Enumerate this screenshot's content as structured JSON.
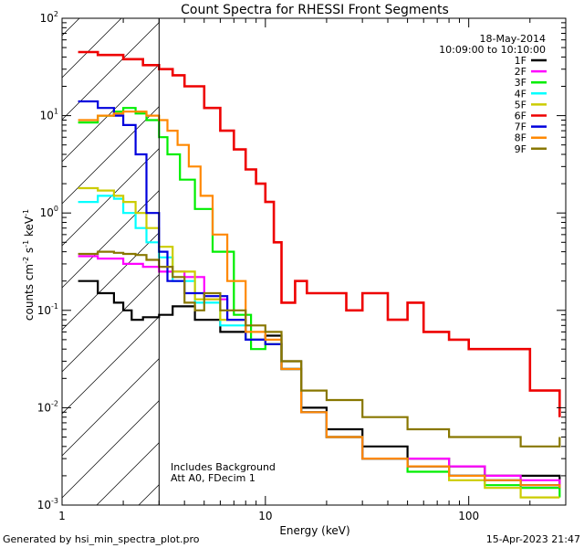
{
  "chart_data": {
    "type": "line",
    "title": "Count Spectra for RHESSI Front Segments",
    "xlabel": "Energy (keV)",
    "ylabel_parts": [
      "counts cm",
      "-2",
      " s",
      "-1",
      " keV",
      "-1"
    ],
    "xscale": "log",
    "yscale": "log",
    "xlim": [
      1,
      300
    ],
    "ylim": [
      0.001,
      100
    ],
    "x_ticks": [
      {
        "value": 1,
        "label": "1"
      },
      {
        "value": 10,
        "label": "10"
      },
      {
        "value": 100,
        "label": "100"
      }
    ],
    "y_ticks": [
      {
        "value": 0.001,
        "base": "10",
        "exp": "-3"
      },
      {
        "value": 0.01,
        "base": "10",
        "exp": "-2"
      },
      {
        "value": 0.1,
        "base": "10",
        "exp": "-1"
      },
      {
        "value": 1,
        "base": "10",
        "exp": "0"
      },
      {
        "value": 10,
        "base": "10",
        "exp": "1"
      },
      {
        "value": 100,
        "base": "10",
        "exp": "2"
      }
    ],
    "date": "18-May-2014",
    "time_range": "10:09:00 to 10:10:00",
    "hatch_until_kev": 3,
    "notes": [
      "Includes Background",
      "Att A0, FDecim 1"
    ],
    "series": [
      {
        "name": "1F",
        "color": "#000000",
        "x": [
          1.2,
          1.5,
          1.8,
          2.0,
          2.2,
          2.5,
          3.0,
          3.5,
          4.5,
          6,
          8,
          10,
          12,
          15,
          20,
          30,
          50,
          80,
          120,
          180,
          280
        ],
        "y": [
          0.2,
          0.15,
          0.12,
          0.1,
          0.08,
          0.085,
          0.09,
          0.11,
          0.08,
          0.06,
          0.05,
          0.055,
          0.03,
          0.01,
          0.006,
          0.004,
          0.003,
          0.0025,
          0.002,
          0.002,
          0.0015
        ]
      },
      {
        "name": "2F",
        "color": "#ff00ff",
        "x": [
          1.2,
          1.5,
          2.0,
          2.5,
          3.0,
          4.0,
          5.0,
          6.5,
          8,
          10,
          12,
          15,
          20,
          30,
          50,
          80,
          120,
          180,
          280
        ],
        "y": [
          0.36,
          0.34,
          0.3,
          0.28,
          0.25,
          0.22,
          0.13,
          0.08,
          0.05,
          0.045,
          0.025,
          0.009,
          0.005,
          0.003,
          0.003,
          0.0025,
          0.002,
          0.0018,
          0.0015
        ]
      },
      {
        "name": "3F",
        "color": "#00ee00",
        "x": [
          1.2,
          1.5,
          1.8,
          2.0,
          2.3,
          2.6,
          3.0,
          3.3,
          3.8,
          4.5,
          5.5,
          7,
          8.5,
          10,
          12,
          15,
          20,
          30,
          50,
          80,
          120,
          180,
          280
        ],
        "y": [
          8.5,
          10,
          11,
          12,
          10.5,
          9,
          6,
          4,
          2.2,
          1.1,
          0.4,
          0.09,
          0.04,
          0.045,
          0.025,
          0.009,
          0.005,
          0.003,
          0.0022,
          0.002,
          0.0016,
          0.0015,
          0.0012
        ]
      },
      {
        "name": "4F",
        "color": "#00ffff",
        "x": [
          1.2,
          1.5,
          1.8,
          2.0,
          2.3,
          2.6,
          3.0,
          3.5,
          4.5,
          6,
          8,
          10,
          12,
          15,
          20,
          30,
          50,
          80,
          120,
          180,
          280
        ],
        "y": [
          1.3,
          1.5,
          1.4,
          1.0,
          0.7,
          0.5,
          0.35,
          0.2,
          0.12,
          0.07,
          0.05,
          0.045,
          0.025,
          0.009,
          0.005,
          0.003,
          0.0025,
          0.002,
          0.0018,
          0.0016,
          0.0015
        ]
      },
      {
        "name": "5F",
        "color": "#cccc00",
        "x": [
          1.2,
          1.5,
          1.8,
          2.0,
          2.3,
          2.6,
          3.0,
          3.5,
          4.5,
          6,
          8,
          10,
          12,
          15,
          20,
          30,
          50,
          80,
          120,
          180,
          280
        ],
        "y": [
          1.8,
          1.7,
          1.5,
          1.3,
          1.0,
          0.7,
          0.45,
          0.25,
          0.13,
          0.08,
          0.05,
          0.045,
          0.025,
          0.009,
          0.005,
          0.003,
          0.0025,
          0.0018,
          0.0015,
          0.0012,
          0.0012
        ]
      },
      {
        "name": "6F",
        "color": "#ee0000",
        "x": [
          1.2,
          1.5,
          2.0,
          2.5,
          3.0,
          3.5,
          4.0,
          5.0,
          6.0,
          7.0,
          8.0,
          9.0,
          10,
          11,
          12,
          14,
          16,
          20,
          25,
          30,
          40,
          50,
          60,
          80,
          100,
          150,
          200,
          280
        ],
        "y": [
          45,
          42,
          38,
          33,
          30,
          26,
          20,
          12,
          7,
          4.5,
          2.8,
          2.0,
          1.3,
          0.5,
          0.12,
          0.2,
          0.15,
          0.15,
          0.1,
          0.15,
          0.08,
          0.12,
          0.06,
          0.05,
          0.04,
          0.04,
          0.015,
          0.008
        ]
      },
      {
        "name": "7F",
        "color": "#0000dd",
        "x": [
          1.2,
          1.5,
          1.8,
          2.0,
          2.3,
          2.6,
          3.0,
          3.3,
          4.0,
          5.0,
          6.5,
          8,
          10,
          12,
          15,
          20,
          30,
          50,
          80,
          120,
          180,
          280
        ],
        "y": [
          14,
          12,
          10,
          8,
          4,
          1.0,
          0.4,
          0.2,
          0.15,
          0.14,
          0.08,
          0.05,
          0.045,
          0.025,
          0.009,
          0.005,
          0.003,
          0.0025,
          0.002,
          0.0018,
          0.0016,
          0.0015
        ]
      },
      {
        "name": "8F",
        "color": "#ff8800",
        "x": [
          1.2,
          1.5,
          1.8,
          2.0,
          2.3,
          2.6,
          3.0,
          3.3,
          3.7,
          4.2,
          4.8,
          5.5,
          6.5,
          8,
          10,
          12,
          15,
          20,
          30,
          50,
          80,
          120,
          180,
          280
        ],
        "y": [
          9,
          10,
          10.5,
          11,
          11,
          10,
          9,
          7,
          5,
          3,
          1.5,
          0.6,
          0.2,
          0.06,
          0.05,
          0.025,
          0.009,
          0.005,
          0.003,
          0.0025,
          0.002,
          0.0018,
          0.0016,
          0.0015
        ]
      },
      {
        "name": "9F",
        "color": "#887700",
        "x": [
          1.2,
          1.5,
          1.8,
          2.0,
          2.3,
          2.6,
          3.0,
          3.5,
          4.0,
          4.5,
          5.0,
          6,
          8,
          10,
          12,
          15,
          20,
          30,
          50,
          80,
          120,
          180,
          280
        ],
        "y": [
          0.38,
          0.4,
          0.39,
          0.38,
          0.37,
          0.33,
          0.28,
          0.22,
          0.12,
          0.1,
          0.15,
          0.1,
          0.07,
          0.06,
          0.03,
          0.015,
          0.012,
          0.008,
          0.006,
          0.005,
          0.005,
          0.004,
          0.005
        ]
      }
    ]
  },
  "footer": {
    "generated_by": "Generated by hsi_min_spectra_plot.pro",
    "timestamp": "15-Apr-2023 21:47"
  }
}
